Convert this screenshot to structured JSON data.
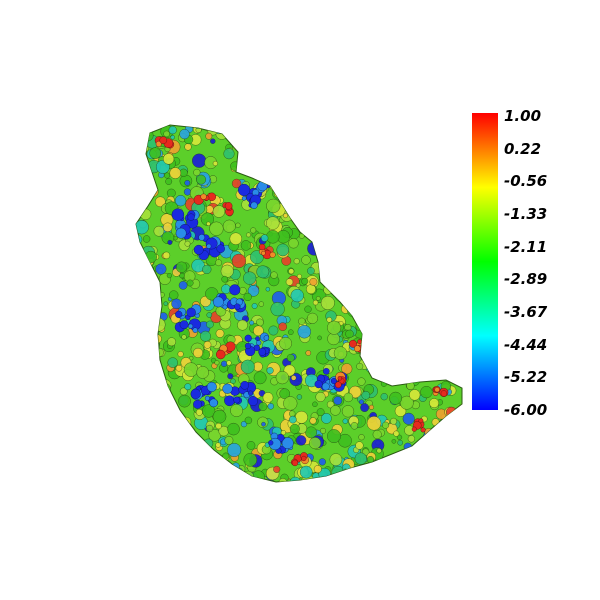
{
  "scene": {
    "description_colors": {
      "background": "#ffffff"
    }
  },
  "colorbar": {
    "max": 1.0,
    "min": -6.0,
    "gradient": [
      "#ff0000",
      "#ffff00",
      "#00ff00",
      "#00ffff",
      "#0000ff"
    ],
    "ticks": [
      "1.00",
      "0.22",
      "-0.56",
      "-1.33",
      "-2.11",
      "-2.89",
      "-3.67",
      "-4.44",
      "-5.22",
      "-6.00"
    ]
  }
}
